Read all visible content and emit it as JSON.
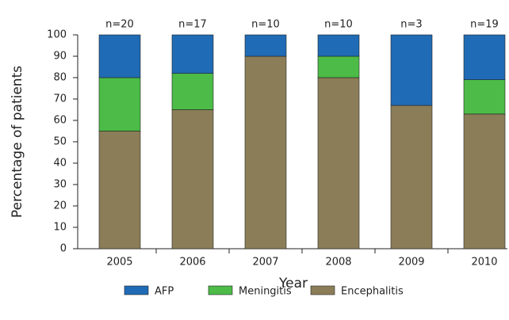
{
  "chart_data": {
    "type": "stacked_bar",
    "x_label": "Year",
    "y_label": "Percentage of patients",
    "categories": [
      "2005",
      "2006",
      "2007",
      "2008",
      "2009",
      "2010"
    ],
    "annotations": [
      "n=20",
      "n=17",
      "n=10",
      "n=10",
      "n=3",
      "n=19"
    ],
    "series": [
      {
        "name": "AFP",
        "color": "#1f6bb5",
        "values": [
          20,
          18,
          10,
          10,
          33,
          21
        ]
      },
      {
        "name": "Meningitis",
        "color": "#4cbb47",
        "values": [
          25,
          17,
          0,
          10,
          0,
          16
        ]
      },
      {
        "name": "Encephalitis",
        "color": "#8b7d57",
        "values": [
          55,
          65,
          90,
          80,
          67,
          63
        ]
      }
    ],
    "ylim": [
      0,
      100
    ],
    "yticks": [
      0,
      10,
      20,
      30,
      40,
      50,
      60,
      70,
      80,
      90,
      100
    ],
    "grid": false,
    "legend": "bottom"
  }
}
